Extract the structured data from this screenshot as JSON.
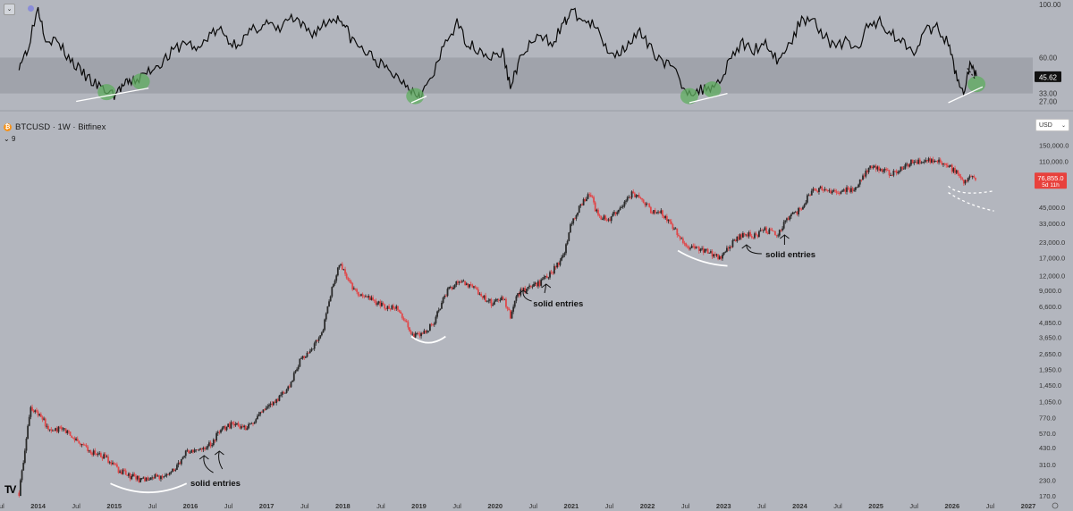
{
  "header": {
    "symbol_line": "BTCUSD · 1W · Bitfinex",
    "volume_label": "9",
    "coin_glyph": "₿",
    "collapse_icon": "chevron-down-icon"
  },
  "currency_selector": {
    "value": "USD"
  },
  "logo_text": "TV",
  "colors": {
    "bg": "#b3b6be",
    "band": "#a0a3ab",
    "line": "#0a0a0a",
    "up": "#2a2a2a",
    "down": "#e0484a",
    "green": "#5fae5f",
    "price_tag": "#e8413c"
  },
  "annotations": [
    "solid entries",
    "solid entries",
    "solid entries"
  ],
  "chart_data": [
    {
      "type": "line",
      "title": "",
      "yticks": [
        "100.00",
        "60.00",
        "45.62",
        "33.00",
        "27.00"
      ],
      "last_value": "45.62",
      "band": [
        33,
        60
      ],
      "ylim": [
        24,
        100
      ],
      "series": [
        {
          "x": [
            2013.75,
            2013.85,
            2014.0,
            2014.1,
            2014.25,
            2014.4,
            2014.55,
            2014.7,
            2014.85,
            2015.0,
            2015.1,
            2015.2,
            2015.35,
            2015.5,
            2015.65,
            2015.8,
            2015.95,
            2016.1,
            2016.25,
            2016.4,
            2016.55,
            2016.7,
            2016.85,
            2017.0,
            2017.15,
            2017.3,
            2017.45,
            2017.6,
            2017.75,
            2017.9,
            2018.0,
            2018.1,
            2018.25,
            2018.4,
            2018.55,
            2018.7,
            2018.85,
            2018.95,
            2019.05,
            2019.2,
            2019.35,
            2019.5,
            2019.65,
            2019.8,
            2019.95,
            2020.1,
            2020.2,
            2020.3,
            2020.45,
            2020.6,
            2020.75,
            2020.9,
            2021.0,
            2021.15,
            2021.3,
            2021.45,
            2021.6,
            2021.75,
            2021.9,
            2022.05,
            2022.2,
            2022.35,
            2022.5,
            2022.65,
            2022.8,
            2022.95,
            2023.1,
            2023.25,
            2023.4,
            2023.55,
            2023.7,
            2023.85,
            2024.0,
            2024.15,
            2024.3,
            2024.45,
            2024.6,
            2024.75,
            2024.9,
            2025.05,
            2025.2,
            2025.35,
            2025.5,
            2025.65,
            2025.8,
            2025.95,
            2026.05,
            2026.15,
            2026.25,
            2026.32
          ],
          "values": [
            55,
            65,
            98,
            75,
            72,
            60,
            50,
            42,
            36,
            32,
            38,
            41,
            45,
            52,
            58,
            66,
            72,
            65,
            78,
            80,
            70,
            74,
            82,
            86,
            80,
            90,
            84,
            78,
            85,
            90,
            88,
            75,
            66,
            60,
            52,
            46,
            40,
            33,
            34,
            48,
            72,
            85,
            70,
            66,
            60,
            64,
            38,
            55,
            70,
            75,
            72,
            85,
            95,
            88,
            84,
            68,
            62,
            72,
            78,
            66,
            58,
            50,
            36,
            34,
            38,
            42,
            62,
            70,
            66,
            72,
            58,
            68,
            86,
            92,
            78,
            68,
            72,
            66,
            84,
            88,
            78,
            72,
            66,
            80,
            82,
            70,
            48,
            34,
            56,
            46
          ]
        }
      ]
    },
    {
      "type": "candlestick",
      "title": "",
      "scale": "log",
      "yticks": [
        "150,000.0",
        "110,000.0",
        "76,855.0",
        "45,000.0",
        "33,000.0",
        "23,000.0",
        "17,000.0",
        "12,000.0",
        "9,000.0",
        "6,600.0",
        "4,850.0",
        "3,650.0",
        "2,650.0",
        "1,950.0",
        "1,450.0",
        "1,050.0",
        "770.0",
        "570.0",
        "430.0",
        "310.0",
        "230.0",
        "170.0"
      ],
      "xticks": [
        "Jul",
        "2014",
        "Jul",
        "2015",
        "Jul",
        "2016",
        "Jul",
        "2017",
        "Jul",
        "2018",
        "Jul",
        "2019",
        "Jul",
        "2020",
        "Jul",
        "2021",
        "Jul",
        "2022",
        "Jul",
        "2023",
        "Jul",
        "2024",
        "Jul",
        "2025",
        "Jul",
        "2026",
        "Jul",
        "2027"
      ],
      "x_range": [
        2013.5,
        2027.0
      ],
      "ylim": [
        150,
        180000
      ],
      "last_price": "76,855.0",
      "countdown": "5d 11h",
      "path_x": [
        2013.75,
        2013.9,
        2014.0,
        2014.15,
        2014.3,
        2014.5,
        2014.7,
        2014.9,
        2015.05,
        2015.2,
        2015.35,
        2015.5,
        2015.65,
        2015.8,
        2015.95,
        2016.1,
        2016.25,
        2016.4,
        2016.55,
        2016.7,
        2016.85,
        2017.0,
        2017.15,
        2017.3,
        2017.45,
        2017.6,
        2017.75,
        2017.85,
        2017.95,
        2018.05,
        2018.15,
        2018.3,
        2018.45,
        2018.6,
        2018.75,
        2018.85,
        2018.95,
        2019.05,
        2019.2,
        2019.35,
        2019.5,
        2019.65,
        2019.8,
        2019.95,
        2020.1,
        2020.2,
        2020.3,
        2020.45,
        2020.6,
        2020.75,
        2020.9,
        2021.0,
        2021.1,
        2021.25,
        2021.35,
        2021.5,
        2021.65,
        2021.8,
        2021.9,
        2022.05,
        2022.2,
        2022.35,
        2022.5,
        2022.65,
        2022.8,
        2022.95,
        2023.1,
        2023.25,
        2023.4,
        2023.55,
        2023.7,
        2023.85,
        2024.0,
        2024.15,
        2024.3,
        2024.45,
        2024.6,
        2024.75,
        2024.9,
        2025.05,
        2025.2,
        2025.35,
        2025.5,
        2025.65,
        2025.8,
        2025.95,
        2026.05,
        2026.15,
        2026.25,
        2026.32
      ],
      "path_y": [
        180,
        900,
        850,
        600,
        620,
        500,
        400,
        350,
        280,
        250,
        230,
        240,
        250,
        280,
        400,
        430,
        450,
        600,
        680,
        620,
        750,
        950,
        1100,
        1400,
        2400,
        2800,
        4500,
        9000,
        15000,
        12000,
        9000,
        8000,
        7000,
        6500,
        6200,
        4500,
        3700,
        3800,
        5000,
        8500,
        11000,
        10000,
        8500,
        7000,
        8000,
        5500,
        8500,
        9500,
        10500,
        13000,
        18000,
        33000,
        45000,
        58000,
        38000,
        36000,
        45000,
        60000,
        55000,
        42000,
        40000,
        30000,
        21000,
        20000,
        19000,
        17000,
        22000,
        27000,
        26000,
        29000,
        27000,
        36000,
        43000,
        62000,
        65000,
        60000,
        62000,
        68000,
        95000,
        98000,
        85000,
        100000,
        110000,
        108000,
        115000,
        100000,
        90000,
        75000,
        79000,
        76855
      ]
    }
  ]
}
